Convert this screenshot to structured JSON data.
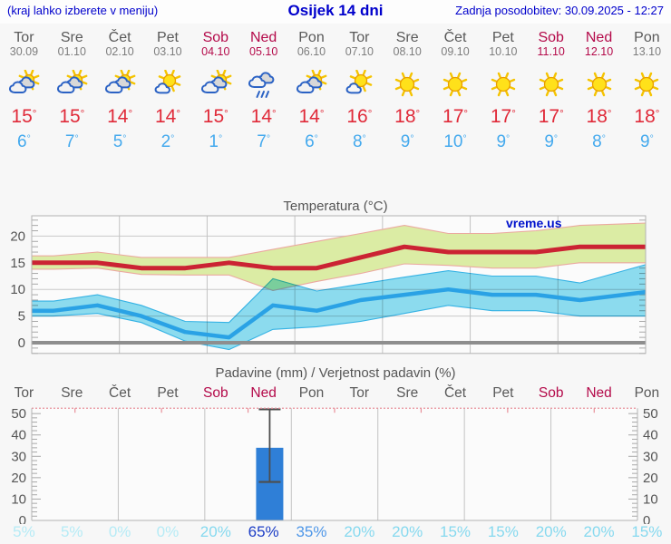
{
  "header": {
    "menu_hint": "(kraj lahko izberete v meniju)",
    "title": "Osijek 14 dni",
    "last_update": "Zadnja posodobitev: 30.09.2025 - 12:27"
  },
  "units": {
    "degree": "°",
    "percent": "%"
  },
  "colors": {
    "link_blue": "#0000cc",
    "weekend_red": "#b40a4a",
    "weekday_gray": "#595959",
    "tmax_red": "#e02a39",
    "tmin_blue": "#45aaee",
    "watermark_blue": "#0012cc",
    "bar_blue": "#2f7fd7",
    "prob_low": "#b6ebf6",
    "prob_mid": "#86d9ef",
    "prob_high": "#4f97e8",
    "prob_max": "#1d3ec6"
  },
  "forecast": {
    "days": [
      {
        "name": "Tor",
        "date": "30.09",
        "icon": "partly-cloudy",
        "tmax": 15,
        "tmin": 6,
        "weekend": false
      },
      {
        "name": "Sre",
        "date": "01.10",
        "icon": "partly-cloudy",
        "tmax": 15,
        "tmin": 7,
        "weekend": false
      },
      {
        "name": "Čet",
        "date": "02.10",
        "icon": "partly-cloudy",
        "tmax": 14,
        "tmin": 5,
        "weekend": false
      },
      {
        "name": "Pet",
        "date": "03.10",
        "icon": "mostly-sunny",
        "tmax": 14,
        "tmin": 2,
        "weekend": false
      },
      {
        "name": "Sob",
        "date": "04.10",
        "icon": "partly-cloudy",
        "tmax": 15,
        "tmin": 1,
        "weekend": true
      },
      {
        "name": "Ned",
        "date": "05.10",
        "icon": "rain",
        "tmax": 14,
        "tmin": 7,
        "weekend": true
      },
      {
        "name": "Pon",
        "date": "06.10",
        "icon": "partly-cloudy",
        "tmax": 14,
        "tmin": 6,
        "weekend": false
      },
      {
        "name": "Tor",
        "date": "07.10",
        "icon": "mostly-sunny",
        "tmax": 16,
        "tmin": 8,
        "weekend": false
      },
      {
        "name": "Sre",
        "date": "08.10",
        "icon": "sunny",
        "tmax": 18,
        "tmin": 9,
        "weekend": false
      },
      {
        "name": "Čet",
        "date": "09.10",
        "icon": "sunny",
        "tmax": 17,
        "tmin": 10,
        "weekend": false
      },
      {
        "name": "Pet",
        "date": "10.10",
        "icon": "sunny",
        "tmax": 17,
        "tmin": 9,
        "weekend": false
      },
      {
        "name": "Sob",
        "date": "11.10",
        "icon": "sunny",
        "tmax": 17,
        "tmin": 9,
        "weekend": true
      },
      {
        "name": "Ned",
        "date": "12.10",
        "icon": "sunny",
        "tmax": 18,
        "tmin": 8,
        "weekend": true
      },
      {
        "name": "Pon",
        "date": "13.10",
        "icon": "sunny",
        "tmax": 18,
        "tmin": 9,
        "weekend": false
      }
    ]
  },
  "chart_data": [
    {
      "type": "line",
      "title": "Temperatura (°C)",
      "watermark": "vreme.us",
      "categories": [
        "Tor",
        "Sre",
        "Čet",
        "Pet",
        "Sob",
        "Ned",
        "Pon",
        "Tor",
        "Sre",
        "Čet",
        "Pet",
        "Sob",
        "Ned",
        "Pon"
      ],
      "ylim": [
        -2,
        23.8
      ],
      "yticks": [
        0,
        5,
        10,
        15,
        20
      ],
      "zero_line": true,
      "grid": true,
      "series": [
        {
          "name": "max-temp",
          "color": "#cb2333",
          "values": [
            15,
            15,
            14,
            14,
            15,
            14,
            14,
            16,
            18,
            17,
            17,
            17,
            18,
            18
          ]
        },
        {
          "name": "min-temp",
          "color": "#2aa2e5",
          "values": [
            6,
            7,
            5,
            2,
            1,
            7,
            6,
            8,
            9,
            10,
            9,
            9,
            8,
            9
          ]
        }
      ],
      "bands": [
        {
          "name": "max-temp-range",
          "fill": "#dbeca4",
          "edge": "#eba9a0",
          "upper": [
            16.3,
            17,
            16,
            16,
            16,
            17.5,
            19,
            20.5,
            22,
            20.5,
            20.5,
            21,
            22,
            22.3
          ],
          "lower": [
            13.8,
            14,
            12.8,
            12.7,
            12.7,
            9.8,
            11.5,
            13,
            14.8,
            14.5,
            14,
            14,
            15,
            15
          ]
        },
        {
          "name": "min-temp-range",
          "fill": "#8edff2",
          "edge": "#35b5e8",
          "upper": [
            7.8,
            9,
            7,
            4,
            3.8,
            12,
            9.7,
            11,
            12.3,
            13.5,
            12.5,
            12.5,
            11.2,
            13.5
          ],
          "lower": [
            5,
            5.5,
            3.8,
            0.3,
            -1.3,
            2.5,
            3,
            4,
            5.5,
            7,
            6,
            6,
            5,
            5
          ]
        }
      ]
    },
    {
      "type": "bar",
      "title": "Padavine (mm) / Verjetnost padavin (%)",
      "categories": [
        "Tor",
        "Sre",
        "Čet",
        "Pet",
        "Sob",
        "Ned",
        "Pon",
        "Tor",
        "Sre",
        "Čet",
        "Pet",
        "Sob",
        "Ned",
        "Pon"
      ],
      "precipitation_mm": [
        0,
        0,
        0,
        0,
        0,
        34,
        0,
        0,
        0,
        0,
        0,
        0,
        0,
        0
      ],
      "range_bar": {
        "day_index": 5,
        "low": 18,
        "high": 52
      },
      "probability_pct": [
        5,
        5,
        0,
        0,
        20,
        65,
        35,
        20,
        20,
        15,
        15,
        20,
        20,
        15
      ],
      "ylim": [
        0,
        52.5
      ],
      "yticks": [
        0,
        10,
        20,
        30,
        40,
        50
      ],
      "grid": true
    }
  ]
}
